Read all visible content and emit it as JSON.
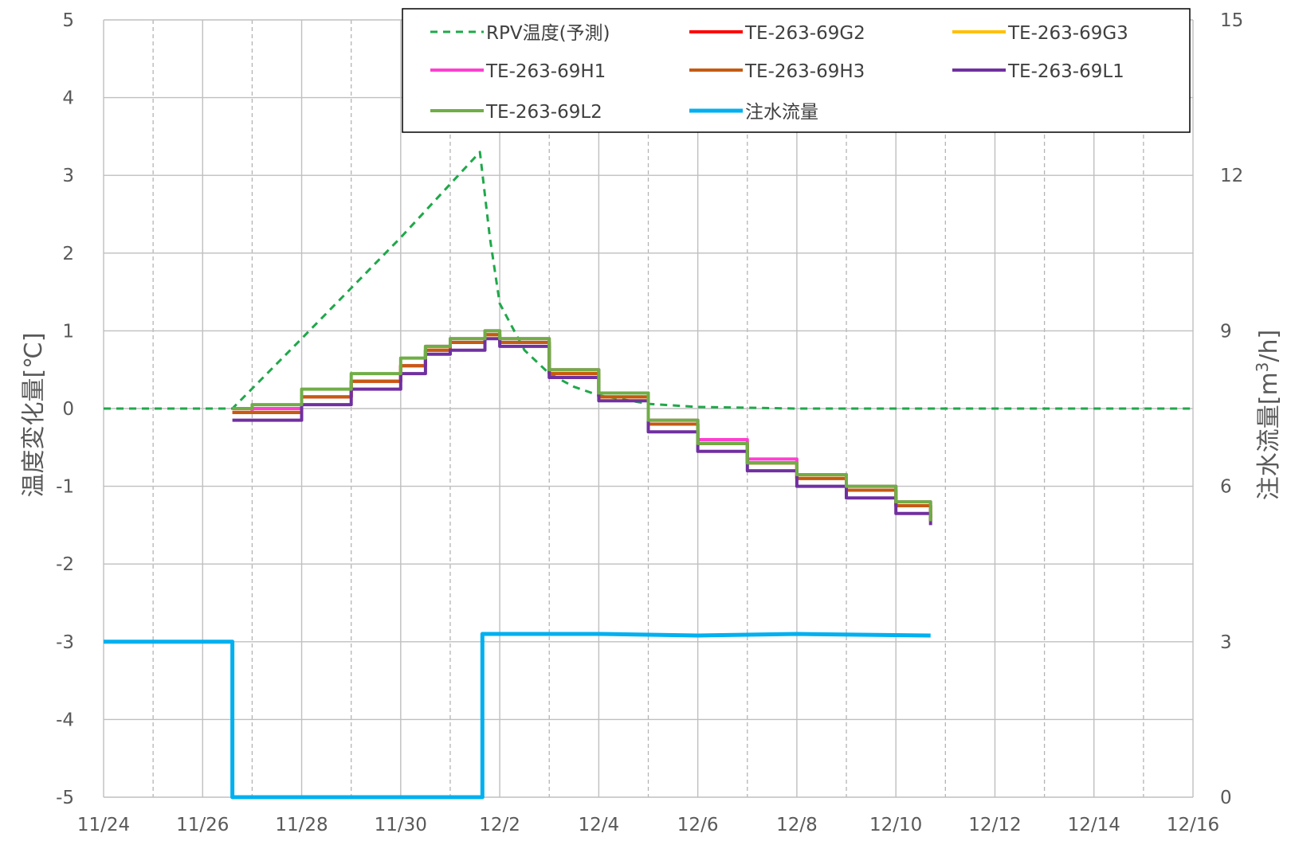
{
  "chart_data": {
    "type": "line",
    "x_axis": {
      "ticks": [
        "11/24",
        "11/26",
        "11/28",
        "11/30",
        "12/2",
        "12/4",
        "12/6",
        "12/8",
        "12/10",
        "12/12",
        "12/14",
        "12/16"
      ],
      "range_days": [
        0,
        22
      ]
    },
    "y_left": {
      "label": "温度変化量[℃]",
      "range": [
        -5,
        5
      ],
      "ticks": [
        "5",
        "4",
        "3",
        "2",
        "1",
        "0",
        "-1",
        "-2",
        "-3",
        "-4",
        "-5"
      ]
    },
    "y_right": {
      "label_main": "注水流量[m",
      "label_sup": "3",
      "label_tail": "/h]",
      "range": [
        0,
        15
      ],
      "ticks": [
        "15",
        "12",
        "9",
        "6",
        "3",
        "0"
      ]
    },
    "grid": {
      "major": "solid",
      "minor_vertical": "dashed"
    },
    "legend_position": "top-right",
    "series": [
      {
        "name": "RPV温度(予測)",
        "color": "#1fa84a",
        "dash": "dashed",
        "axis": "left",
        "x": [
          "11/24",
          "11/26",
          "11/26.6",
          "11/28",
          "11/30",
          "12/1.6",
          "12/1.8",
          "12/2",
          "12/2.5",
          "12/3",
          "12/3.5",
          "12/4",
          "12/5",
          "12/6",
          "12/8",
          "12/16"
        ],
        "values": [
          0,
          0,
          0,
          0.9,
          2.2,
          3.3,
          2.2,
          1.35,
          0.75,
          0.45,
          0.28,
          0.17,
          0.06,
          0.02,
          0.0,
          0.0
        ]
      },
      {
        "name": "TE-263-69G2",
        "color": "#ff0000",
        "axis": "left",
        "x": [
          "11/26.6",
          "11/27",
          "11/28",
          "11/29",
          "11/30",
          "12/0.5",
          "12/1",
          "12/1.7",
          "12/2",
          "12/3",
          "12/4",
          "12/5",
          "12/6",
          "12/7",
          "12/8",
          "12/9",
          "12/10",
          "12/10.7"
        ],
        "values": [
          -0.05,
          -0.05,
          0.15,
          0.35,
          0.55,
          0.75,
          0.85,
          0.95,
          0.85,
          0.45,
          0.15,
          -0.2,
          -0.45,
          -0.7,
          -0.9,
          -1.05,
          -1.25,
          -1.45
        ]
      },
      {
        "name": "TE-263-69G3",
        "color": "#ffc000",
        "axis": "left",
        "x": [
          "11/26.6",
          "11/27",
          "11/28",
          "11/29",
          "11/30",
          "12/0.5",
          "12/1",
          "12/1.7",
          "12/2",
          "12/3",
          "12/4",
          "12/5",
          "12/6",
          "12/7",
          "12/8",
          "12/9",
          "12/10",
          "12/10.7"
        ],
        "values": [
          -0.05,
          0.0,
          0.15,
          0.35,
          0.55,
          0.75,
          0.85,
          0.95,
          0.85,
          0.45,
          0.15,
          -0.2,
          -0.45,
          -0.7,
          -0.9,
          -1.05,
          -1.25,
          -1.4
        ]
      },
      {
        "name": "TE-263-69H1",
        "color": "#ff3fcf",
        "axis": "left",
        "x": [
          "11/26.6",
          "11/27",
          "11/28",
          "11/29",
          "11/30",
          "12/0.5",
          "12/1",
          "12/1.7",
          "12/2",
          "12/3",
          "12/4",
          "12/5",
          "12/6",
          "12/7",
          "12/8",
          "12/9",
          "12/10",
          "12/10.7"
        ],
        "values": [
          -0.05,
          0.0,
          0.15,
          0.35,
          0.55,
          0.8,
          0.9,
          1.0,
          0.9,
          0.5,
          0.2,
          -0.15,
          -0.4,
          -0.65,
          -0.85,
          -1.0,
          -1.2,
          -1.4
        ]
      },
      {
        "name": "TE-263-69H3",
        "color": "#c55a11",
        "axis": "left",
        "x": [
          "11/26.6",
          "11/27",
          "11/28",
          "11/29",
          "11/30",
          "12/0.5",
          "12/1",
          "12/1.7",
          "12/2",
          "12/3",
          "12/4",
          "12/5",
          "12/6",
          "12/7",
          "12/8",
          "12/9",
          "12/10",
          "12/10.7"
        ],
        "values": [
          -0.05,
          -0.05,
          0.15,
          0.35,
          0.55,
          0.75,
          0.85,
          0.95,
          0.85,
          0.45,
          0.15,
          -0.2,
          -0.45,
          -0.7,
          -0.9,
          -1.05,
          -1.25,
          -1.45
        ]
      },
      {
        "name": "TE-263-69L1",
        "color": "#7030a0",
        "axis": "left",
        "x": [
          "11/26.6",
          "11/27",
          "11/28",
          "11/29",
          "11/30",
          "12/0.5",
          "12/1",
          "12/1.7",
          "12/2",
          "12/3",
          "12/4",
          "12/5",
          "12/6",
          "12/7",
          "12/8",
          "12/9",
          "12/10",
          "12/10.7"
        ],
        "values": [
          -0.15,
          -0.15,
          0.05,
          0.25,
          0.45,
          0.7,
          0.75,
          0.9,
          0.8,
          0.4,
          0.1,
          -0.3,
          -0.55,
          -0.8,
          -1.0,
          -1.15,
          -1.35,
          -1.5
        ]
      },
      {
        "name": "TE-263-69L2",
        "color": "#70ad47",
        "axis": "left",
        "x": [
          "11/26.6",
          "11/27",
          "11/28",
          "11/29",
          "11/30",
          "12/0.5",
          "12/1",
          "12/1.7",
          "12/2",
          "12/3",
          "12/4",
          "12/5",
          "12/6",
          "12/7",
          "12/8",
          "12/9",
          "12/10",
          "12/10.7"
        ],
        "values": [
          0.0,
          0.05,
          0.25,
          0.45,
          0.65,
          0.8,
          0.9,
          1.0,
          0.9,
          0.5,
          0.2,
          -0.15,
          -0.45,
          -0.7,
          -0.85,
          -1.0,
          -1.2,
          -1.45
        ]
      },
      {
        "name": "注水流量",
        "color": "#00b0f0",
        "axis": "right",
        "x": [
          "11/24",
          "11/26.6",
          "11/26.6",
          "12/1.65",
          "12/1.65",
          "12/4",
          "12/6",
          "12/8",
          "12/10.7"
        ],
        "values": [
          3.0,
          3.0,
          0.0,
          0.0,
          3.15,
          3.15,
          3.12,
          3.15,
          3.12
        ]
      }
    ]
  }
}
